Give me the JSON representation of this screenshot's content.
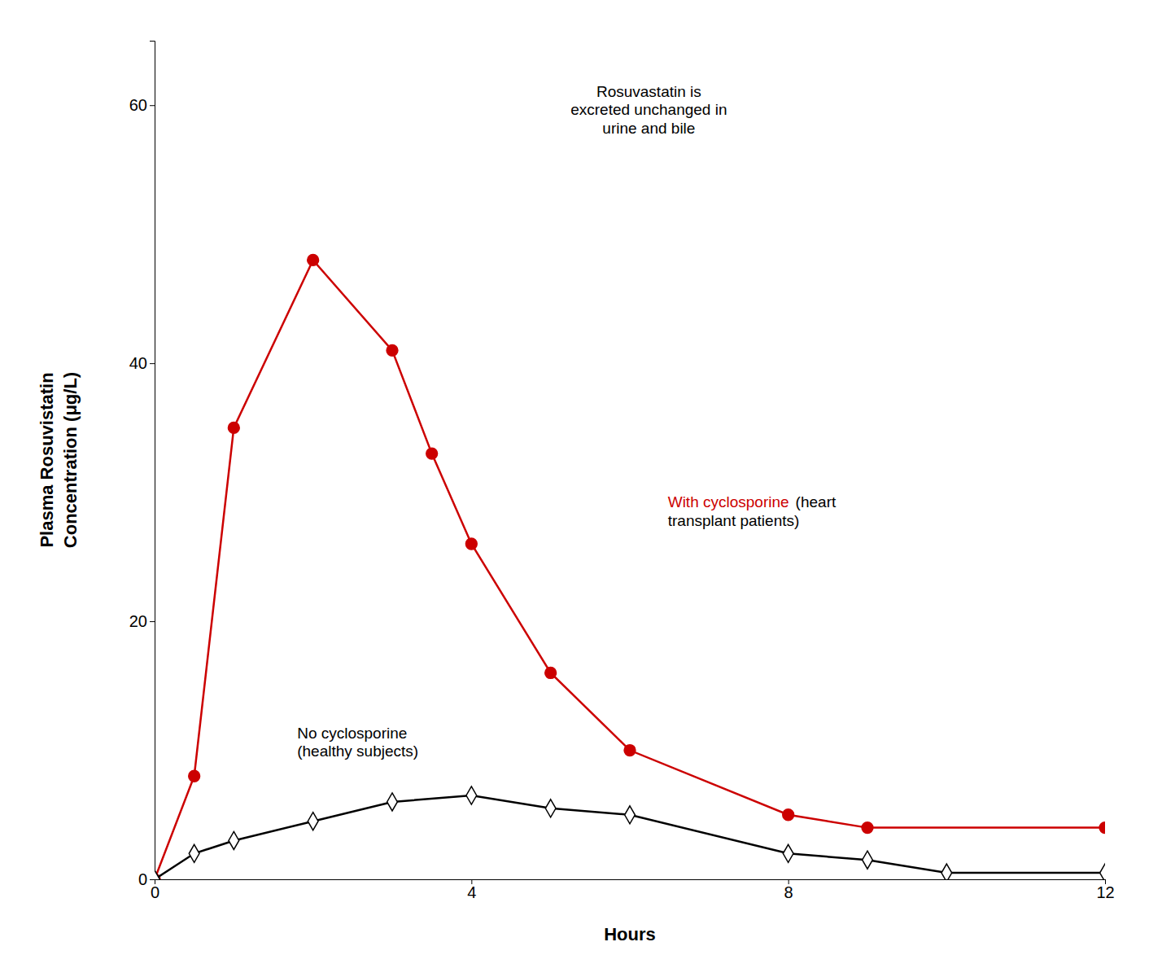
{
  "chart_data": {
    "type": "line",
    "xlabel": "Hours",
    "ylabel": "Plasma Rosuvistatin\nConcentration (μg/L)",
    "xlim": [
      0,
      12
    ],
    "ylim": [
      0,
      65
    ],
    "xticks": [
      0,
      4,
      8,
      12
    ],
    "yticks": [
      0,
      20,
      40,
      60
    ],
    "grid": false,
    "series": [
      {
        "color": "#cc0000",
        "marker": "circle",
        "x": [
          0,
          0.5,
          1,
          2,
          3,
          3.5,
          4,
          5,
          6,
          8,
          9,
          12
        ],
        "values": [
          0,
          8,
          35,
          48,
          41,
          33,
          26,
          16,
          10,
          5,
          4,
          4
        ]
      },
      {
        "color": "#000000",
        "marker": "diamond-open",
        "x": [
          0,
          0.5,
          1,
          2,
          3,
          4,
          5,
          6,
          8,
          9,
          10,
          12
        ],
        "values": [
          0,
          2,
          3,
          4.5,
          6,
          6.5,
          5.5,
          5,
          2,
          1.5,
          0.5,
          0.5
        ]
      }
    ],
    "annotations": [
      {
        "text": "Rosuvastatin is\nexcreted unchanged in\nurine and bile"
      },
      {
        "text": "With cyclosporine",
        "color": "#cc0000"
      },
      {
        "text": "(heart\ntransplant patients)"
      },
      {
        "text": "No cyclosporine\n(healthy subjects)"
      }
    ]
  }
}
